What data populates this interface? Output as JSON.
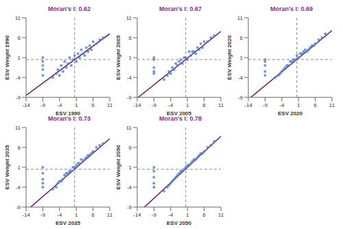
{
  "chart_data": [
    {
      "type": "scatter",
      "title": "Moran's I: 0.62",
      "x_label": "ESV 1990",
      "y_label": "ESV Weight 1990",
      "color": "#4a7fd8",
      "xlim": [
        -14,
        11
      ],
      "xticks": [
        -14,
        -9,
        -4,
        1,
        6,
        11
      ],
      "ylim": [
        -9,
        11
      ],
      "yticks": [
        -9,
        -4,
        1,
        6,
        11
      ],
      "x": [
        -9,
        -9,
        -9,
        -9,
        -9,
        -6,
        -5,
        -4.5,
        -4,
        -3.5,
        -3,
        -2.5,
        -2,
        -1.5,
        -1,
        -0.5,
        0,
        0.5,
        1,
        1.5,
        2,
        2.5,
        3,
        3.5,
        4,
        4.5,
        5,
        5.5,
        6,
        7,
        8,
        9
      ],
      "values": [
        -3.5,
        -2,
        -1,
        0,
        1,
        -4,
        -3,
        -2,
        -3.5,
        -1,
        -2.5,
        0,
        -1.5,
        -0.5,
        1,
        -1,
        0.5,
        1.5,
        0,
        2,
        1,
        3,
        2,
        1.5,
        3.5,
        2.5,
        4,
        3,
        5,
        4.5,
        5.5,
        6
      ],
      "fit_line": {
        "x": [
          -14,
          11
        ],
        "values": [
          -8.5,
          7
        ]
      },
      "reference_lines": {
        "x": 0.5,
        "y": 0.5
      }
    },
    {
      "type": "scatter",
      "title": "Moran's I: 0.67",
      "x_label": "ESV 2005",
      "y_label": "ESV Weight 2005",
      "color": "#4a7fd8",
      "xlim": [
        -14,
        11
      ],
      "xticks": [
        -14,
        -9,
        -4,
        1,
        6,
        11
      ],
      "ylim": [
        -9,
        11
      ],
      "yticks": [
        -9,
        -4,
        1,
        6,
        11
      ],
      "x": [
        -9,
        -9,
        -9,
        -9,
        -9,
        -6,
        -5,
        -4.5,
        -4,
        -3.5,
        -3,
        -2.5,
        -2,
        -1.5,
        -1,
        -0.5,
        0,
        0.5,
        1,
        1.5,
        2,
        2.5,
        3,
        3.5,
        4,
        4.5,
        5,
        5.5,
        6,
        7,
        8,
        9
      ],
      "values": [
        -3,
        -2.5,
        -1.5,
        0.5,
        1,
        -4.5,
        -3.5,
        -2.5,
        -3,
        -1.5,
        -2,
        -0.5,
        -1,
        0,
        0.5,
        -0.5,
        1,
        1,
        0.5,
        2.5,
        1.5,
        2.5,
        2.5,
        2,
        3.5,
        3,
        4.5,
        3.5,
        5,
        5,
        6,
        6.5
      ],
      "fit_line": {
        "x": [
          -14,
          11
        ],
        "values": [
          -9.2,
          7.6
        ]
      },
      "reference_lines": {
        "x": 0.5,
        "y": 0.5
      }
    },
    {
      "type": "scatter",
      "title": "Moran's I: 0.69",
      "x_label": "ESV 2020",
      "y_label": "ESV Weight 2020",
      "color": "#4a7fd8",
      "xlim": [
        -14,
        11
      ],
      "xticks": [
        -14,
        -9,
        -4,
        1,
        6,
        11
      ],
      "ylim": [
        -9,
        11
      ],
      "yticks": [
        -9,
        -4,
        1,
        6,
        11
      ],
      "x": [
        -9,
        -9,
        -9,
        -9,
        -9,
        -6,
        -5,
        -4.5,
        -4,
        -3.5,
        -3,
        -2.5,
        -2,
        -1.5,
        -1,
        -0.5,
        0,
        0.5,
        1,
        1.5,
        2,
        2.5,
        3,
        3.5,
        4,
        4.5,
        5,
        5.5,
        6,
        7,
        8,
        9
      ],
      "values": [
        -3.5,
        -2.5,
        -1,
        0,
        0.5,
        -4,
        -3.5,
        -3,
        -2.5,
        -2,
        -1.5,
        -1,
        -1,
        0,
        0,
        0.5,
        0.5,
        1.5,
        1,
        2,
        2,
        2.5,
        3,
        2.5,
        3,
        3.5,
        4,
        4,
        4.5,
        5.5,
        6,
        7
      ],
      "fit_line": {
        "x": [
          -14,
          11
        ],
        "values": [
          -9.5,
          7.8
        ]
      },
      "reference_lines": {
        "x": 0.5,
        "y": 0.5
      }
    },
    {
      "type": "scatter",
      "title": "Moran's I: 0.73",
      "x_label": "ESV 2035",
      "y_label": "ESV Weight 2035",
      "color": "#4a7fd8",
      "xlim": [
        -14,
        11
      ],
      "xticks": [
        -14,
        -9,
        -4,
        1,
        6,
        11
      ],
      "ylim": [
        -9,
        11
      ],
      "yticks": [
        -9,
        -4,
        1,
        6,
        11
      ],
      "x": [
        -9,
        -9,
        -9,
        -9,
        -9,
        -6,
        -5,
        -4.5,
        -4,
        -3.5,
        -3,
        -2.5,
        -2,
        -1.5,
        -1,
        -0.5,
        0,
        0.5,
        1,
        1.5,
        2,
        2.5,
        3,
        3.5,
        4,
        4.5,
        5,
        5.5,
        6,
        7,
        8,
        9
      ],
      "values": [
        -4,
        -3,
        -2,
        -0.5,
        1,
        -4.5,
        -4,
        -3,
        -2.5,
        -2.5,
        -2,
        -1,
        -0.5,
        -0.5,
        0,
        0,
        1,
        1,
        1.5,
        2,
        2,
        3,
        2.5,
        3,
        3.5,
        4,
        4,
        4.5,
        5,
        6,
        6.5,
        7
      ],
      "fit_line": {
        "x": [
          -14,
          11
        ],
        "values": [
          -10,
          8.2
        ]
      },
      "reference_lines": {
        "x": 0.5,
        "y": 0.5
      }
    },
    {
      "type": "scatter",
      "title": "Moran's I: 0.78",
      "x_label": "ESV 2050",
      "y_label": "ESV Weight 2050",
      "color": "#4a7fd8",
      "xlim": [
        -14,
        11
      ],
      "xticks": [
        -14,
        -9,
        -4,
        1,
        6,
        11
      ],
      "ylim": [
        -9,
        11
      ],
      "yticks": [
        -9,
        -4,
        1,
        6,
        11
      ],
      "x": [
        -9,
        -9,
        -9,
        -9,
        -9,
        -6,
        -5,
        -4.5,
        -4,
        -3.5,
        -3,
        -2.5,
        -2,
        -1.5,
        -1,
        -0.5,
        0,
        0.5,
        1,
        1.5,
        2,
        2.5,
        3,
        3.5,
        4,
        4.5,
        5,
        5.5,
        6,
        7,
        8,
        9
      ],
      "values": [
        -4,
        -3,
        -1.5,
        0,
        1,
        -5,
        -4,
        -3.5,
        -3,
        -2.5,
        -2,
        -1.5,
        -1,
        -0.5,
        0,
        0,
        0.5,
        1,
        1.5,
        1.5,
        2,
        2.5,
        3,
        3,
        3.5,
        4,
        4.5,
        4.5,
        5,
        6,
        6.5,
        7.5
      ],
      "fit_line": {
        "x": [
          -14,
          11
        ],
        "values": [
          -10.7,
          8.8
        ]
      },
      "reference_lines": {
        "x": 0.5,
        "y": 0.5
      }
    }
  ]
}
